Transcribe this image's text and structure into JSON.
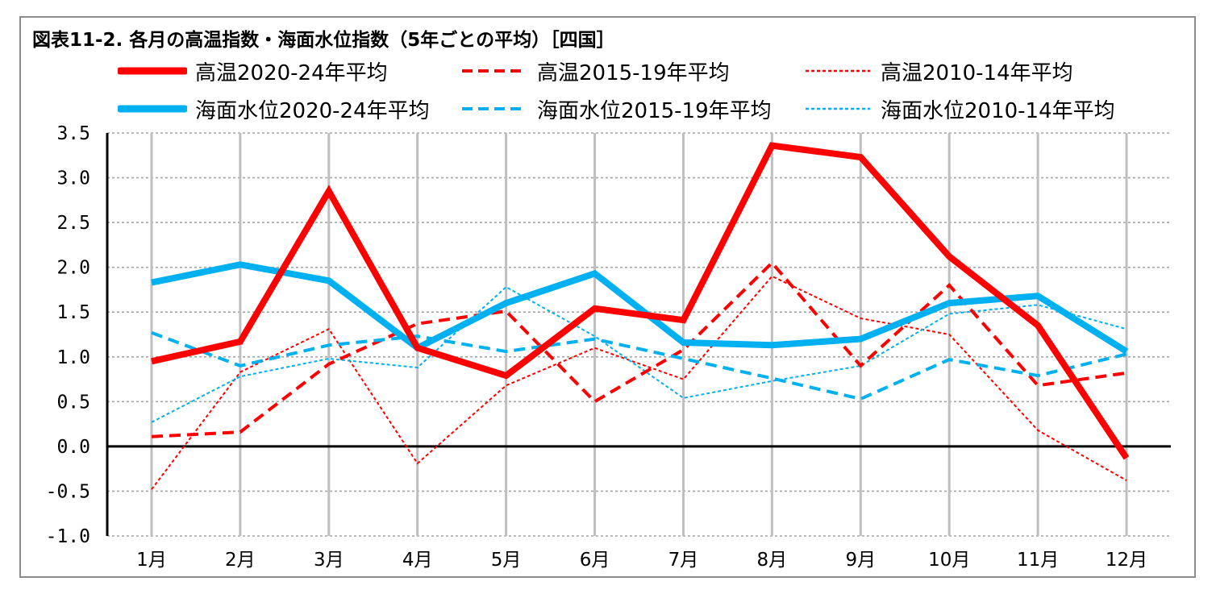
{
  "chart_data": {
    "type": "line",
    "title": "図表11-2. 各月の高温指数・海面水位指数（5年ごとの平均）［四国］",
    "categories": [
      "1月",
      "2月",
      "3月",
      "4月",
      "5月",
      "6月",
      "7月",
      "8月",
      "9月",
      "10月",
      "11月",
      "12月"
    ],
    "ylim": [
      -1.0,
      3.5
    ],
    "yticks": [
      "3.5",
      "3.0",
      "2.5",
      "2.0",
      "1.5",
      "1.0",
      "0.5",
      "0.0",
      "-0.5",
      "-1.0"
    ],
    "grid": true,
    "legend_position": "top",
    "series": [
      {
        "name": "高温2020-24年平均",
        "color": "#ff0000",
        "style": "solid-thick",
        "values": [
          0.95,
          1.17,
          2.85,
          1.1,
          0.79,
          1.54,
          1.41,
          3.36,
          3.23,
          2.12,
          1.35,
          -0.13
        ]
      },
      {
        "name": "高温2015-19年平均",
        "color": "#ff0000",
        "style": "dashed",
        "values": [
          0.11,
          0.16,
          0.92,
          1.37,
          1.51,
          0.5,
          1.08,
          2.05,
          0.9,
          1.8,
          0.68,
          0.82
        ]
      },
      {
        "name": "高温2010-14年平均",
        "color": "#ff0000",
        "style": "dotted-thin",
        "values": [
          -0.48,
          0.83,
          1.31,
          -0.19,
          0.68,
          1.1,
          0.75,
          1.9,
          1.43,
          1.25,
          0.18,
          -0.38
        ]
      },
      {
        "name": "海面水位2020-24年平均",
        "color": "#00b0f0",
        "style": "solid-thick",
        "values": [
          1.83,
          2.03,
          1.85,
          1.1,
          1.6,
          1.93,
          1.16,
          1.13,
          1.2,
          1.6,
          1.68,
          1.06
        ]
      },
      {
        "name": "海面水位2015-19年平均",
        "color": "#00b0f0",
        "style": "dashed",
        "values": [
          1.27,
          0.9,
          1.13,
          1.23,
          1.06,
          1.2,
          0.98,
          0.76,
          0.53,
          0.97,
          0.79,
          1.03
        ]
      },
      {
        "name": "海面水位2010-14年平均",
        "color": "#00b0f0",
        "style": "dotted-thin",
        "values": [
          0.27,
          0.78,
          0.98,
          0.88,
          1.78,
          1.23,
          0.54,
          0.73,
          0.9,
          1.48,
          1.58,
          1.31
        ]
      }
    ]
  }
}
